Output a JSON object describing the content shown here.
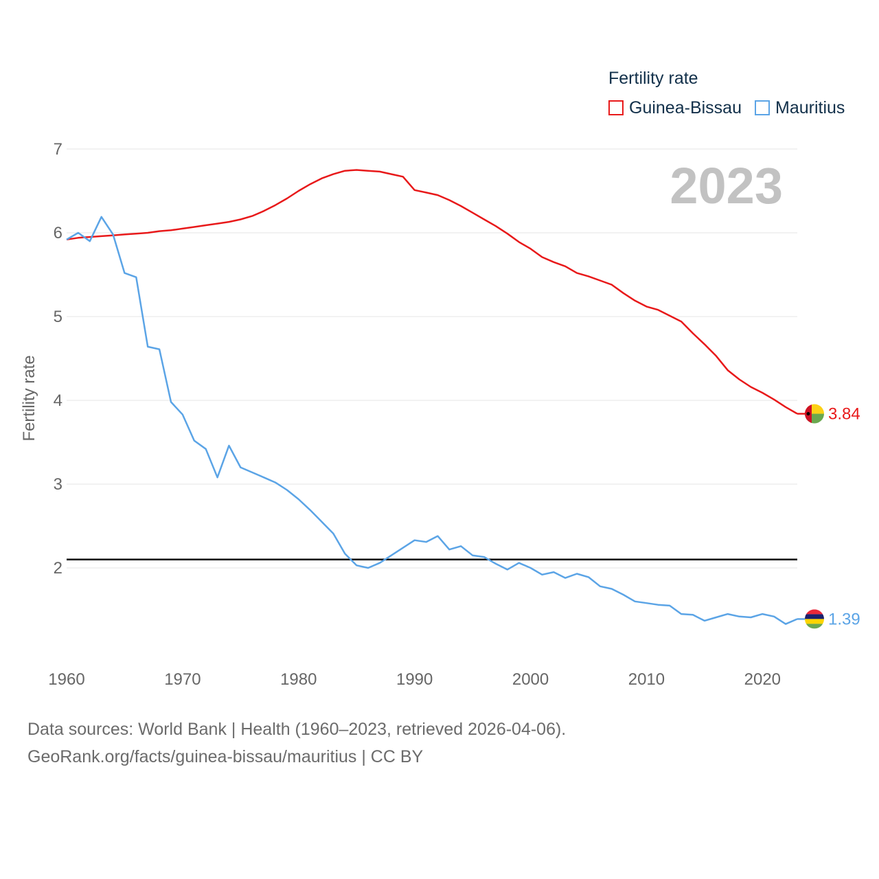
{
  "chart_data": {
    "type": "line",
    "legend_title": "Fertility rate",
    "year_label": "2023",
    "ylabel": "Fertility rate",
    "xlabel": "",
    "xlim": [
      1960,
      2023
    ],
    "ylim": [
      1.0,
      7.0
    ],
    "x_ticks": [
      1960,
      1970,
      1980,
      1990,
      2000,
      2010,
      2020
    ],
    "y_ticks": [
      2,
      3,
      4,
      5,
      6,
      7
    ],
    "reference_line": 2.1,
    "grid": true,
    "legend_position": "top-right",
    "series": [
      {
        "name": "Guinea-Bissau",
        "color": "#e8191a",
        "end_label": "3.84",
        "flag_icon": "guinea-bissau-flag-icon",
        "start_year": 1960,
        "values": [
          5.92,
          5.94,
          5.95,
          5.96,
          5.97,
          5.98,
          5.99,
          6.0,
          6.02,
          6.03,
          6.05,
          6.07,
          6.09,
          6.11,
          6.13,
          6.16,
          6.2,
          6.26,
          6.33,
          6.41,
          6.5,
          6.58,
          6.65,
          6.7,
          6.74,
          6.75,
          6.74,
          6.73,
          6.7,
          6.67,
          6.51,
          6.48,
          6.45,
          6.39,
          6.32,
          6.24,
          6.16,
          6.08,
          5.99,
          5.89,
          5.81,
          5.71,
          5.65,
          5.6,
          5.52,
          5.48,
          5.43,
          5.38,
          5.28,
          5.19,
          5.12,
          5.08,
          5.01,
          4.94,
          4.8,
          4.67,
          4.53,
          4.36,
          4.25,
          4.16,
          4.09,
          4.01,
          3.92,
          3.84
        ]
      },
      {
        "name": "Mauritius",
        "color": "#5ba4e6",
        "end_label": "1.39",
        "flag_icon": "mauritius-flag-icon",
        "start_year": 1960,
        "values": [
          5.92,
          6.0,
          5.9,
          6.19,
          5.98,
          5.52,
          5.47,
          4.64,
          4.61,
          3.98,
          3.83,
          3.52,
          3.42,
          3.08,
          3.46,
          3.2,
          3.14,
          3.08,
          3.02,
          2.93,
          2.82,
          2.69,
          2.55,
          2.41,
          2.17,
          2.03,
          2.0,
          2.06,
          2.15,
          2.24,
          2.33,
          2.31,
          2.38,
          2.22,
          2.26,
          2.15,
          2.13,
          2.05,
          1.98,
          2.06,
          2.0,
          1.92,
          1.95,
          1.88,
          1.93,
          1.89,
          1.78,
          1.75,
          1.68,
          1.6,
          1.58,
          1.56,
          1.55,
          1.45,
          1.44,
          1.37,
          1.41,
          1.45,
          1.42,
          1.41,
          1.45,
          1.42,
          1.33,
          1.39
        ]
      }
    ]
  },
  "footer": {
    "sources": "Data sources: World Bank | Health (1960–2023, retrieved 2026-04-06).",
    "link": "GeoRank.org/facts/guinea-bissau/mauritius | CC BY"
  }
}
